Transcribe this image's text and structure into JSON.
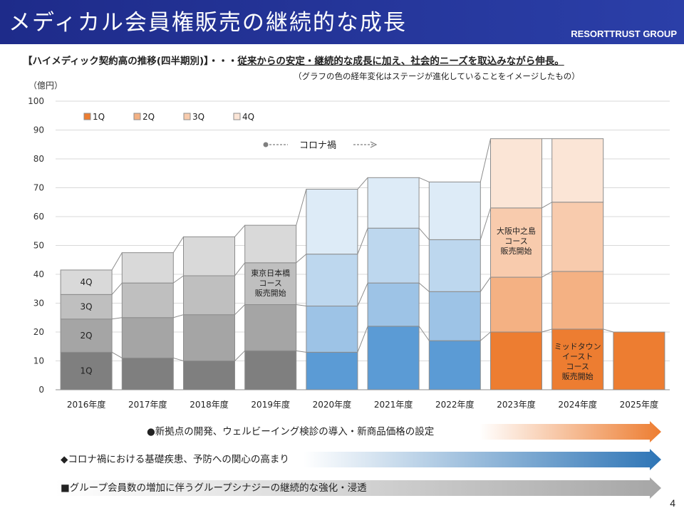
{
  "header": {
    "title": "メディカル会員権販売の継続的な成長",
    "brand": "RESORTTRUST GROUP"
  },
  "subtitle": {
    "lead": "【ハイメディック契約高の推移(四半期別)】・・・",
    "emphasis": "従来からの安定・継続的な成長に加え、社会的ニーズを取込みながら伸長。"
  },
  "note": "（グラフの色の経年変化はステージが進化していることをイメージしたもの）",
  "chart_data": {
    "type": "bar",
    "stacked": true,
    "ylabel": "（億円）",
    "ylim": [
      0,
      100
    ],
    "yticks": [
      0,
      10,
      20,
      30,
      40,
      50,
      60,
      70,
      80,
      90,
      100
    ],
    "grid": true,
    "legend_position": "top-left",
    "categories": [
      "2016年度",
      "2017年度",
      "2018年度",
      "2019年度",
      "2020年度",
      "2021年度",
      "2022年度",
      "2023年度",
      "2024年度",
      "2025年度"
    ],
    "series": [
      {
        "name": "1Q",
        "values": [
          13,
          11,
          10,
          13.5,
          13,
          22,
          17,
          20,
          21,
          20
        ]
      },
      {
        "name": "2Q",
        "values": [
          11.5,
          14,
          16,
          16,
          16,
          15,
          17,
          19,
          20,
          null
        ]
      },
      {
        "name": "3Q",
        "values": [
          8.5,
          12,
          13.5,
          14.5,
          18,
          19,
          18,
          24,
          24,
          null
        ]
      },
      {
        "name": "4Q",
        "values": [
          8.5,
          10.5,
          13.5,
          13,
          22.5,
          17.5,
          20,
          24,
          22,
          null
        ]
      }
    ],
    "group_colors": [
      [
        "#7f7f7f",
        "#a5a5a5",
        "#bfbfbf",
        "#d9d9d9"
      ],
      [
        "#5b9bd5",
        "#9dc3e6",
        "#bdd7ee",
        "#ddebf7"
      ],
      [
        "#ed7d31",
        "#f4b183",
        "#f8cbad",
        "#fbe5d6"
      ]
    ],
    "legend_colors": [
      "#ed7d31",
      "#f4b183",
      "#f8cbad",
      "#fbe5d6"
    ],
    "first_bar_segment_labels": [
      "1Q",
      "2Q",
      "3Q",
      "4Q"
    ],
    "annotations": [
      {
        "category": "2019年度",
        "lines": [
          "東京日本橋",
          "コース",
          "販売開始"
        ]
      },
      {
        "category": "2023年度",
        "lines": [
          "大阪中之島",
          "コース",
          "販売開始"
        ]
      },
      {
        "category": "2024年度",
        "lines": [
          "ミッドタウン",
          "イースト",
          "コース",
          "販売開始"
        ]
      }
    ],
    "corona_label": "コロナ禍"
  },
  "banners": [
    {
      "text": "●新拠点の開発、ウェルビーイング検診の導入・新商品価格の設定",
      "start_color": "#ffffff",
      "end_color": "#ed7d31"
    },
    {
      "text": "◆コロナ禍における基礎疾患、予防への関心の高まり",
      "start_color": "#ffffff",
      "end_color": "#2e75b6"
    },
    {
      "text": "■グループ会員数の増加に伴うグループシナジーの継続的な強化・浸透",
      "start_color": "#ffffff",
      "end_color": "#a6a6a6"
    }
  ],
  "page_number": "4"
}
